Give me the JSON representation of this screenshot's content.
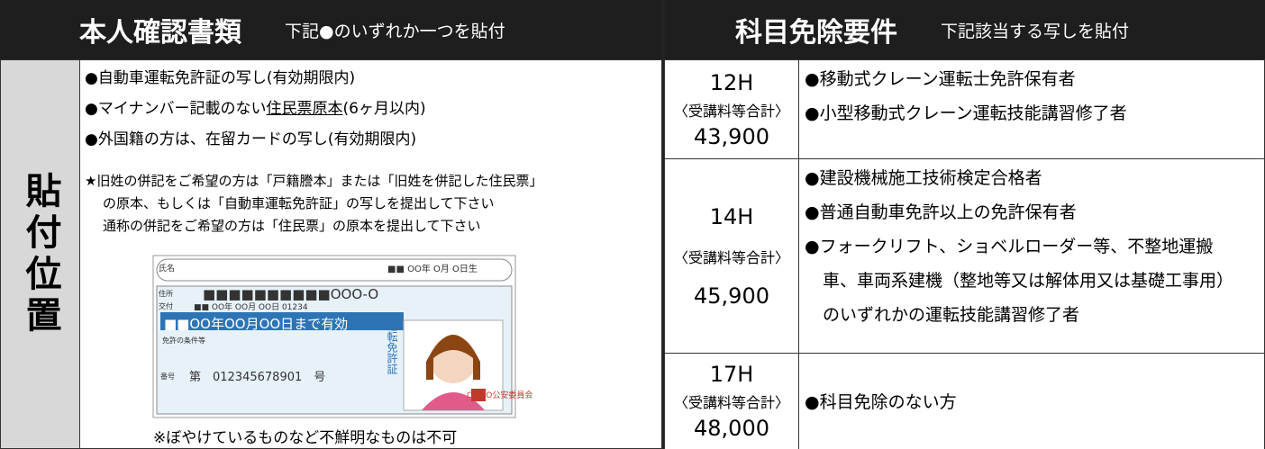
{
  "header": {
    "left_title": "本人確認書類",
    "left_subtitle": "下記●のいずれか一つを貼付",
    "right_title": "科目免除要件",
    "right_subtitle": "下記該当する写しを貼付"
  },
  "side_label": "貼付位置",
  "id_documents": {
    "items": [
      {
        "text": "●自動車運転免許証の写し(有効期限内)"
      },
      {
        "prefix": "●マイナンバー記載のない",
        "underlined": "住民票原本",
        "suffix": "(6ヶ月以内)"
      },
      {
        "text": "●外国籍の方は、在留カードの写し(有効期限内)"
      }
    ],
    "notes": [
      "★旧姓の併記をご希望の方は「戸籍謄本」または「旧姓を併記した住民票」",
      "の原本、もしくは「自動車運転免許証」の写しを提出して下さい",
      "通称の併記をご希望の方は「住民票」の原本を提出して下さい"
    ],
    "caption": "※ぼやけているものなど不鮮明なものは不可"
  },
  "license": {
    "name": "氏名",
    "birth": "■■ OO年 O月 O日生",
    "address": "住所",
    "address_value": "■■■■■■■■■■OOO-O",
    "issued": "交付",
    "issued_value": "■■ OO年 OO月 OO日 01234",
    "valid": "■■OO年OO月OO日まで有効",
    "type": "運転免許証",
    "conditions": "免許の条件等",
    "number_label": "番号",
    "number": "第　012345678901　号",
    "authority": "OOOO公安委員会"
  },
  "courses": [
    {
      "hours": "12H",
      "fee_label": "〈受講料等合計〉",
      "fee": "43,900",
      "items": [
        "●移動式クレーン運転士免許保有者",
        "●小型移動式クレーン運転技能講習修了者"
      ]
    },
    {
      "hours": "14H",
      "fee_label": "〈受講料等合計〉",
      "fee": "45,900",
      "items": [
        "●建設機械施工技術検定合格者",
        "●普通自動車免許以上の免許保有者",
        "●フォークリフト、ショベルローダー等、不整地運搬車、車両系建機（整地等又は解体用又は基礎工事用）のいずれかの運転技能講習修了者"
      ]
    },
    {
      "hours": "17H",
      "fee_label": "〈受講料等合計〉",
      "fee": "48,000",
      "items": [
        "●科目免除のない方"
      ]
    }
  ]
}
